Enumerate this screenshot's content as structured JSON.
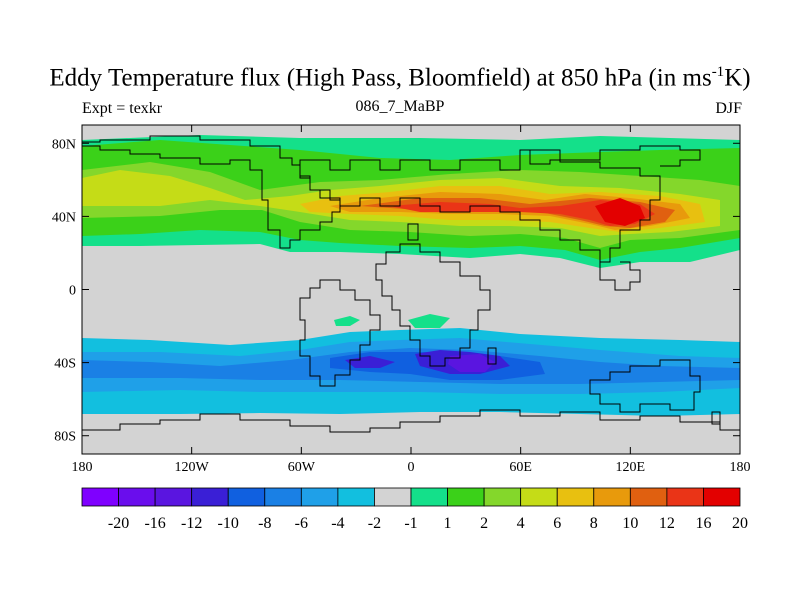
{
  "title_main": "Eddy Temperature flux (High Pass, Bloomfield) at 850 hPa (in ms",
  "title_sup": "-1",
  "title_end": "K)",
  "expt_label": "Expt = texkr",
  "run_label": "086_7_MaBP",
  "season_label": "DJF",
  "map": {
    "lon_range": [
      -180,
      180
    ],
    "lat_range": [
      -90,
      90
    ],
    "lon_ticks": [
      {
        "lon": -180,
        "label": "180"
      },
      {
        "lon": -120,
        "label": "120W"
      },
      {
        "lon": -60,
        "label": "60W"
      },
      {
        "lon": 0,
        "label": "0"
      },
      {
        "lon": 60,
        "label": "60E"
      },
      {
        "lon": 120,
        "label": "120E"
      },
      {
        "lon": 180,
        "label": "180"
      }
    ],
    "lat_ticks": [
      {
        "lat": 80,
        "label": "80N"
      },
      {
        "lat": 40,
        "label": "40N"
      },
      {
        "lat": 0,
        "label": "0"
      },
      {
        "lat": -40,
        "label": "40S"
      },
      {
        "lat": -80,
        "label": "80S"
      }
    ],
    "missing_color": "#d3d3d3"
  },
  "colorbar": {
    "colors": [
      "#7f00ff",
      "#6a0ded",
      "#5a15e0",
      "#3a1fd6",
      "#1060e0",
      "#1a80e5",
      "#1fa0e8",
      "#12bfdf",
      "#d3d3d3",
      "#14e08a",
      "#3bd119",
      "#84d72b",
      "#c5dc17",
      "#e8c010",
      "#e89a0c",
      "#e06010",
      "#ea3417",
      "#e30000"
    ],
    "labels": [
      "-20",
      "-16",
      "-12",
      "-10",
      "-8",
      "-6",
      "-4",
      "-2",
      "-1",
      "1",
      "2",
      "4",
      "6",
      "8",
      "10",
      "12",
      "16",
      "20"
    ]
  }
}
